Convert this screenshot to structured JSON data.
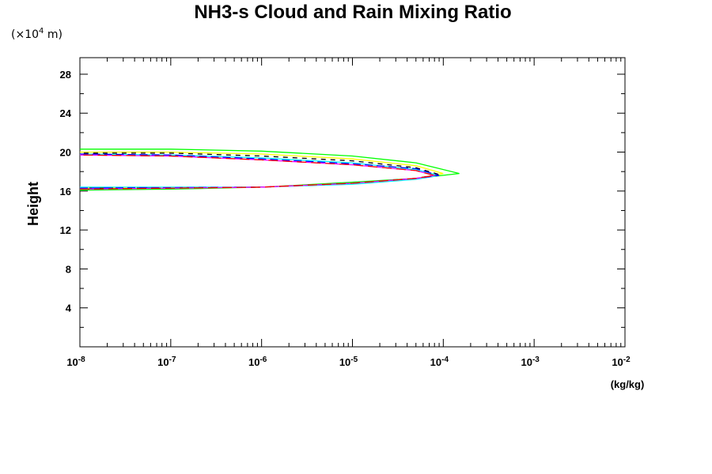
{
  "chart_data": {
    "type": "line",
    "title": "NH3-s Cloud and Rain Mixing Ratio",
    "ylabel": "Height",
    "yunit": {
      "prefix": "(×10",
      "exp": "4",
      "suffix": " m)"
    },
    "xunit": "(kg/kg)",
    "xscale": "log",
    "xlim": [
      1e-08,
      0.01
    ],
    "ylim": [
      0,
      29.7
    ],
    "xticklabels": [
      {
        "exp": -8,
        "base": "10",
        "sup": "-8"
      },
      {
        "exp": -7,
        "base": "10",
        "sup": "-7"
      },
      {
        "exp": -6,
        "base": "10",
        "sup": "-6"
      },
      {
        "exp": -5,
        "base": "10",
        "sup": "-5"
      },
      {
        "exp": -4,
        "base": "10",
        "sup": "-4"
      },
      {
        "exp": -3,
        "base": "10",
        "sup": "-3"
      },
      {
        "exp": -2,
        "base": "10",
        "sup": "-2"
      }
    ],
    "yticks": [
      4,
      8,
      12,
      16,
      20,
      24,
      28
    ],
    "yticklabels": [
      "4",
      "8",
      "12",
      "16",
      "20",
      "24",
      "28"
    ],
    "grid": false,
    "series": [
      {
        "color": "#00ff00",
        "dash": "none",
        "points": [
          [
            1e-08,
            16.1
          ],
          [
            1e-07,
            16.2
          ],
          [
            1e-06,
            16.4
          ],
          [
            1e-05,
            16.9
          ],
          [
            5e-05,
            17.3
          ],
          [
            0.00015,
            17.8
          ],
          [
            5e-05,
            18.9
          ],
          [
            1e-05,
            19.6
          ],
          [
            1e-06,
            20.1
          ],
          [
            1e-07,
            20.3
          ],
          [
            1e-08,
            20.3
          ]
        ]
      },
      {
        "color": "#ffff00",
        "dash": "none",
        "points": [
          [
            1e-08,
            16.3
          ],
          [
            1e-06,
            16.4
          ],
          [
            1e-05,
            16.8
          ],
          [
            5e-05,
            17.3
          ],
          [
            0.0001,
            17.8
          ],
          [
            5e-05,
            18.6
          ],
          [
            1e-05,
            19.3
          ],
          [
            1e-06,
            19.8
          ],
          [
            1e-07,
            20.0
          ],
          [
            1e-08,
            20.0
          ]
        ]
      },
      {
        "color": "#000000",
        "dash": "6,6",
        "points": [
          [
            1e-08,
            16.3
          ],
          [
            1e-06,
            16.4
          ],
          [
            1e-05,
            16.8
          ],
          [
            5e-05,
            17.3
          ],
          [
            9e-05,
            17.7
          ],
          [
            5e-05,
            18.4
          ],
          [
            1e-05,
            19.1
          ],
          [
            1e-06,
            19.6
          ],
          [
            1e-07,
            19.9
          ],
          [
            1e-08,
            19.9
          ]
        ]
      },
      {
        "color": "#00ffff",
        "dash": "none",
        "points": [
          [
            1e-08,
            16.4
          ],
          [
            1e-06,
            16.4
          ],
          [
            1e-05,
            16.7
          ],
          [
            5e-05,
            17.2
          ],
          [
            9e-05,
            17.6
          ],
          [
            5e-05,
            18.2
          ],
          [
            1e-05,
            18.9
          ],
          [
            1e-06,
            19.4
          ],
          [
            1e-07,
            19.7
          ],
          [
            1e-08,
            19.8
          ]
        ]
      },
      {
        "color": "#0000ff",
        "dash": "10,5",
        "points": [
          [
            1e-08,
            16.3
          ],
          [
            1e-06,
            16.4
          ],
          [
            1e-05,
            16.8
          ],
          [
            5e-05,
            17.3
          ],
          [
            9e-05,
            17.6
          ],
          [
            5e-05,
            18.3
          ],
          [
            1e-05,
            18.8
          ],
          [
            1e-06,
            19.3
          ],
          [
            1e-07,
            19.7
          ],
          [
            1e-08,
            19.8
          ]
        ]
      },
      {
        "color": "#ff00ff",
        "dash": "none",
        "points": [
          [
            1e-08,
            16.2
          ],
          [
            1e-06,
            16.4
          ],
          [
            1e-05,
            16.8
          ],
          [
            5e-05,
            17.3
          ],
          [
            8e-05,
            17.6
          ],
          [
            5e-05,
            18.1
          ],
          [
            1e-05,
            18.7
          ],
          [
            1e-06,
            19.2
          ],
          [
            1e-07,
            19.6
          ],
          [
            1e-08,
            19.7
          ]
        ]
      },
      {
        "color": "#ff0000",
        "dash": "12,6",
        "points": [
          [
            1e-08,
            16.2
          ],
          [
            1e-06,
            16.4
          ],
          [
            1e-05,
            16.8
          ],
          [
            5e-05,
            17.3
          ],
          [
            8e-05,
            17.6
          ],
          [
            5e-05,
            18.1
          ],
          [
            1e-05,
            18.7
          ],
          [
            1e-06,
            19.2
          ],
          [
            1e-07,
            19.6
          ],
          [
            1e-08,
            19.7
          ]
        ]
      }
    ]
  }
}
